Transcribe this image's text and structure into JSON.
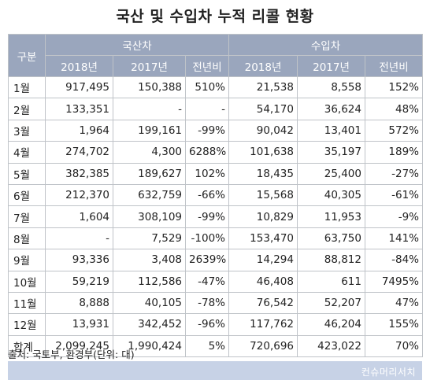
{
  "title": "국산 및 수입차 누적 리콜 현황",
  "headers": {
    "category": "구분",
    "domestic": "국산차",
    "imported": "수입차",
    "year2018": "2018년",
    "year2017": "2017년",
    "yoy": "전년비"
  },
  "rows": [
    {
      "label": "1월",
      "d18": "917,495",
      "d17": "150,388",
      "dy": "510%",
      "i18": "21,538",
      "i17": "8,558",
      "iy": "152%"
    },
    {
      "label": "2월",
      "d18": "133,351",
      "d17": "-",
      "dy": "-",
      "i18": "54,170",
      "i17": "36,624",
      "iy": "48%"
    },
    {
      "label": "3월",
      "d18": "1,964",
      "d17": "199,161",
      "dy": "-99%",
      "i18": "90,042",
      "i17": "13,401",
      "iy": "572%"
    },
    {
      "label": "4월",
      "d18": "274,702",
      "d17": "4,300",
      "dy": "6288%",
      "i18": "101,638",
      "i17": "35,197",
      "iy": "189%"
    },
    {
      "label": "5월",
      "d18": "382,385",
      "d17": "189,627",
      "dy": "102%",
      "i18": "18,435",
      "i17": "25,400",
      "iy": "-27%"
    },
    {
      "label": "6월",
      "d18": "212,370",
      "d17": "632,759",
      "dy": "-66%",
      "i18": "15,568",
      "i17": "40,305",
      "iy": "-61%"
    },
    {
      "label": "7월",
      "d18": "1,604",
      "d17": "308,109",
      "dy": "-99%",
      "i18": "10,829",
      "i17": "11,953",
      "iy": "-9%"
    },
    {
      "label": "8월",
      "d18": "-",
      "d17": "7,529",
      "dy": "-100%",
      "i18": "153,470",
      "i17": "63,750",
      "iy": "141%"
    },
    {
      "label": "9월",
      "d18": "93,336",
      "d17": "3,408",
      "dy": "2639%",
      "i18": "14,294",
      "i17": "88,812",
      "iy": "-84%"
    },
    {
      "label": "10월",
      "d18": "59,219",
      "d17": "112,586",
      "dy": "-47%",
      "i18": "46,408",
      "i17": "611",
      "iy": "7495%"
    },
    {
      "label": "11월",
      "d18": "8,888",
      "d17": "40,105",
      "dy": "-78%",
      "i18": "76,542",
      "i17": "52,207",
      "iy": "47%"
    },
    {
      "label": "12월",
      "d18": "13,931",
      "d17": "342,452",
      "dy": "-96%",
      "i18": "117,762",
      "i17": "46,204",
      "iy": "155%"
    }
  ],
  "total": {
    "label": "합계",
    "d18": "2,099,245",
    "d17": "1,990,424",
    "dy": "5%",
    "i18": "720,696",
    "i17": "423,022",
    "iy": "70%"
  },
  "source": "출처: 국토부, 환경부(단위: 대)",
  "brand": "컨슈머리서치",
  "colors": {
    "header_bg": "#9aa6bd",
    "footer_bar": "#c7d2e6"
  }
}
